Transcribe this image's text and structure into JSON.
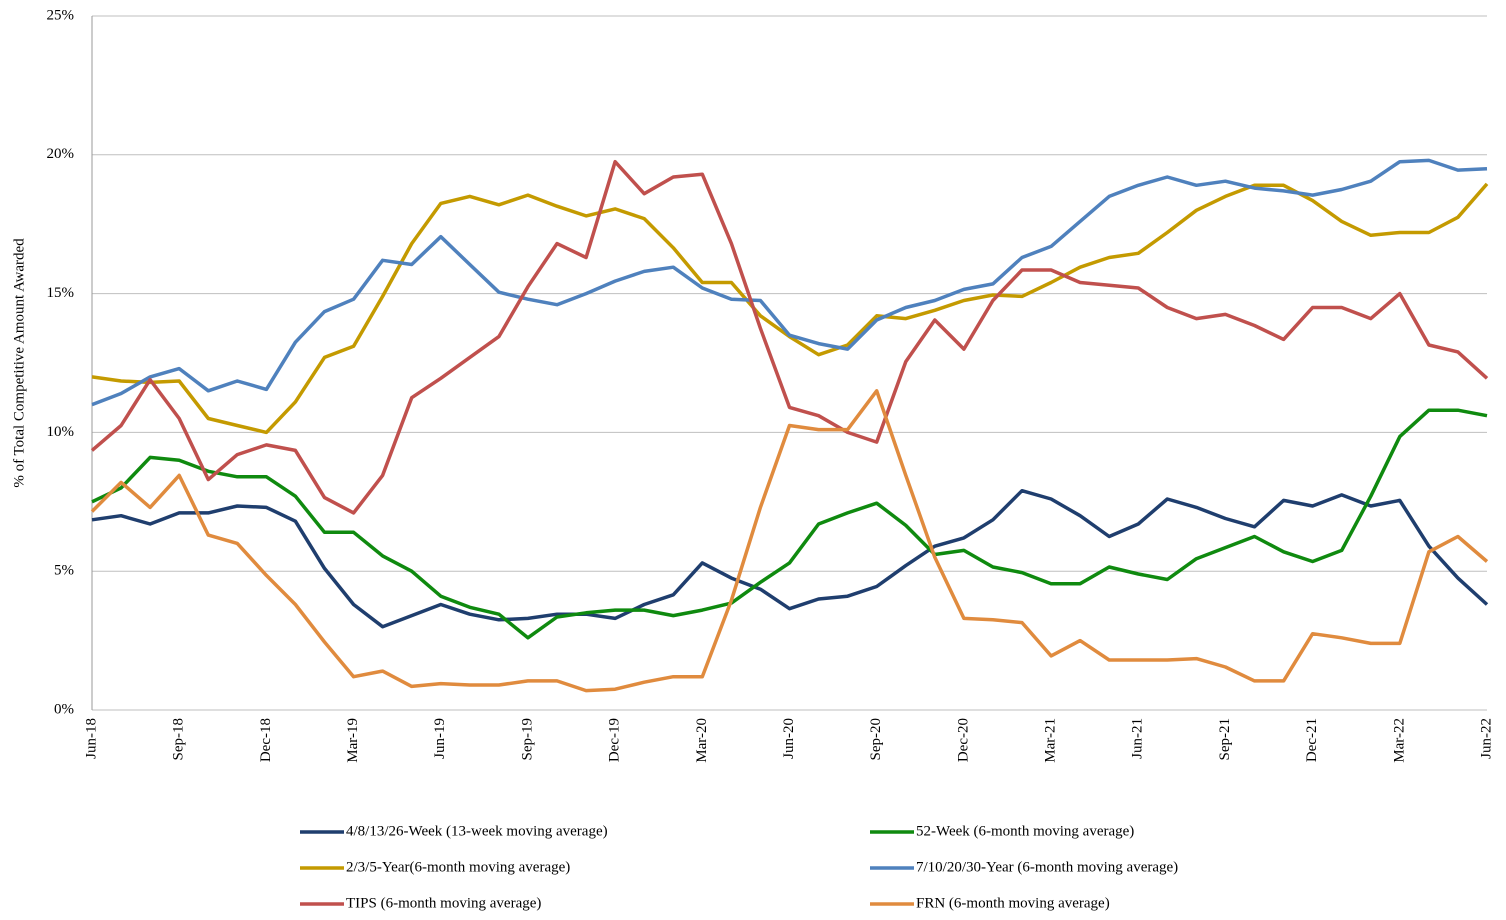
{
  "chart_data": {
    "type": "line",
    "y_label": "% of Total Competitive Amount Awarded",
    "categories": [
      "Jun-18",
      null,
      null,
      "Sep-18",
      null,
      null,
      "Dec-18",
      null,
      null,
      "Mar-19",
      null,
      null,
      "Jun-19",
      null,
      null,
      "Sep-19",
      null,
      null,
      "Dec-19",
      null,
      null,
      "Mar-20",
      null,
      null,
      "Jun-20",
      null,
      null,
      "Sep-20",
      null,
      null,
      "Dec-20",
      null,
      null,
      "Mar-21",
      null,
      null,
      "Jun-21",
      null,
      null,
      "Sep-21",
      null,
      null,
      "Dec-21",
      null,
      null,
      "Mar-22",
      null,
      null,
      "Jun-22"
    ],
    "ylim": [
      0,
      25
    ],
    "yticks": [
      {
        "value": 0,
        "label": "0%"
      },
      {
        "value": 5,
        "label": "5%"
      },
      {
        "value": 10,
        "label": "10%"
      },
      {
        "value": 15,
        "label": "15%"
      },
      {
        "value": 20,
        "label": "20%"
      },
      {
        "value": 25,
        "label": "25%"
      }
    ],
    "grid": true,
    "legend": "bottom",
    "series": [
      {
        "name": "4/8/13/26-Week (13-week moving average)",
        "color": "#1f3e6e",
        "values": [
          6.85,
          7.0,
          6.7,
          7.1,
          7.1,
          7.35,
          7.3,
          6.8,
          5.1,
          3.8,
          3.0,
          3.4,
          3.8,
          3.45,
          3.25,
          3.3,
          3.45,
          3.45,
          3.3,
          3.8,
          4.15,
          5.3,
          4.75,
          4.35,
          3.65,
          4.0,
          4.1,
          4.45,
          5.2,
          5.9,
          6.2,
          6.85,
          7.9,
          7.6,
          7.0,
          6.25,
          6.7,
          7.6,
          7.3,
          6.9,
          6.6,
          7.55,
          7.35,
          7.75,
          7.35,
          7.55,
          5.9,
          4.75,
          3.8
        ]
      },
      {
        "name": "52-Week (6-month moving average)",
        "color": "#0f8a0f",
        "values": [
          7.5,
          8.0,
          9.1,
          9.0,
          8.6,
          8.4,
          8.4,
          7.7,
          6.4,
          6.4,
          5.55,
          5.0,
          4.1,
          3.7,
          3.45,
          2.6,
          3.35,
          3.5,
          3.6,
          3.6,
          3.4,
          3.6,
          3.85,
          4.6,
          5.3,
          6.7,
          7.1,
          7.45,
          6.65,
          5.6,
          5.75,
          5.15,
          4.95,
          4.55,
          4.55,
          5.15,
          4.9,
          4.7,
          5.45,
          5.85,
          6.25,
          5.7,
          5.35,
          5.75,
          7.7,
          9.85,
          10.8,
          10.8,
          10.6
        ]
      },
      {
        "name": "2/3/5-Year(6-month moving average)",
        "color": "#c49a00",
        "values": [
          12.0,
          11.85,
          11.8,
          11.85,
          10.5,
          10.25,
          10.0,
          11.1,
          12.7,
          13.1,
          14.9,
          16.8,
          18.25,
          18.5,
          18.2,
          18.55,
          18.15,
          17.8,
          18.05,
          17.7,
          16.65,
          15.4,
          15.4,
          14.2,
          13.45,
          12.8,
          13.15,
          14.2,
          14.1,
          14.4,
          14.75,
          14.95,
          14.9,
          15.4,
          15.95,
          16.3,
          16.45,
          17.2,
          18.0,
          18.5,
          18.9,
          18.9,
          18.35,
          17.6,
          17.1,
          17.2,
          17.2,
          17.75,
          18.95
        ]
      },
      {
        "name": "7/10/20/30-Year (6-month moving average)",
        "color": "#4f81bd",
        "values": [
          11.0,
          11.4,
          12.0,
          12.3,
          11.5,
          11.85,
          11.55,
          13.25,
          14.35,
          14.8,
          16.2,
          16.05,
          17.05,
          16.05,
          15.05,
          14.8,
          14.6,
          15.0,
          15.45,
          15.8,
          15.95,
          15.2,
          14.8,
          14.75,
          13.5,
          13.2,
          13.0,
          14.05,
          14.5,
          14.75,
          15.15,
          15.35,
          16.3,
          16.7,
          17.6,
          18.5,
          18.9,
          19.2,
          18.9,
          19.05,
          18.8,
          18.7,
          18.55,
          18.75,
          19.05,
          19.75,
          19.8,
          19.45,
          19.5
        ]
      },
      {
        "name": "TIPS (6-month moving average)",
        "color": "#c0504d",
        "values": [
          9.35,
          10.25,
          11.9,
          10.5,
          8.3,
          9.2,
          9.55,
          9.35,
          7.65,
          7.1,
          8.45,
          11.25,
          11.95,
          12.7,
          13.45,
          15.25,
          16.8,
          16.3,
          19.75,
          18.6,
          19.2,
          19.3,
          16.8,
          13.75,
          10.9,
          10.6,
          10.0,
          9.65,
          12.55,
          14.05,
          13.0,
          14.75,
          15.85,
          15.85,
          15.4,
          15.3,
          15.2,
          14.5,
          14.1,
          14.25,
          13.85,
          13.35,
          14.5,
          14.5,
          14.1,
          15.0,
          13.15,
          12.9,
          11.95
        ]
      },
      {
        "name": "FRN (6-month moving average)",
        "color": "#e08b3e",
        "values": [
          7.15,
          8.2,
          7.3,
          8.45,
          6.3,
          6.0,
          4.85,
          3.8,
          2.45,
          1.2,
          1.4,
          0.85,
          0.95,
          0.9,
          0.9,
          1.05,
          1.05,
          0.7,
          0.75,
          1.0,
          1.2,
          1.2,
          3.95,
          7.3,
          10.25,
          10.1,
          10.1,
          11.5,
          8.45,
          5.5,
          3.3,
          3.25,
          3.15,
          1.95,
          2.5,
          1.8,
          1.8,
          1.8,
          1.85,
          1.55,
          1.05,
          1.05,
          2.75,
          2.6,
          2.4,
          2.4,
          5.7,
          6.25,
          5.35
        ]
      }
    ]
  }
}
